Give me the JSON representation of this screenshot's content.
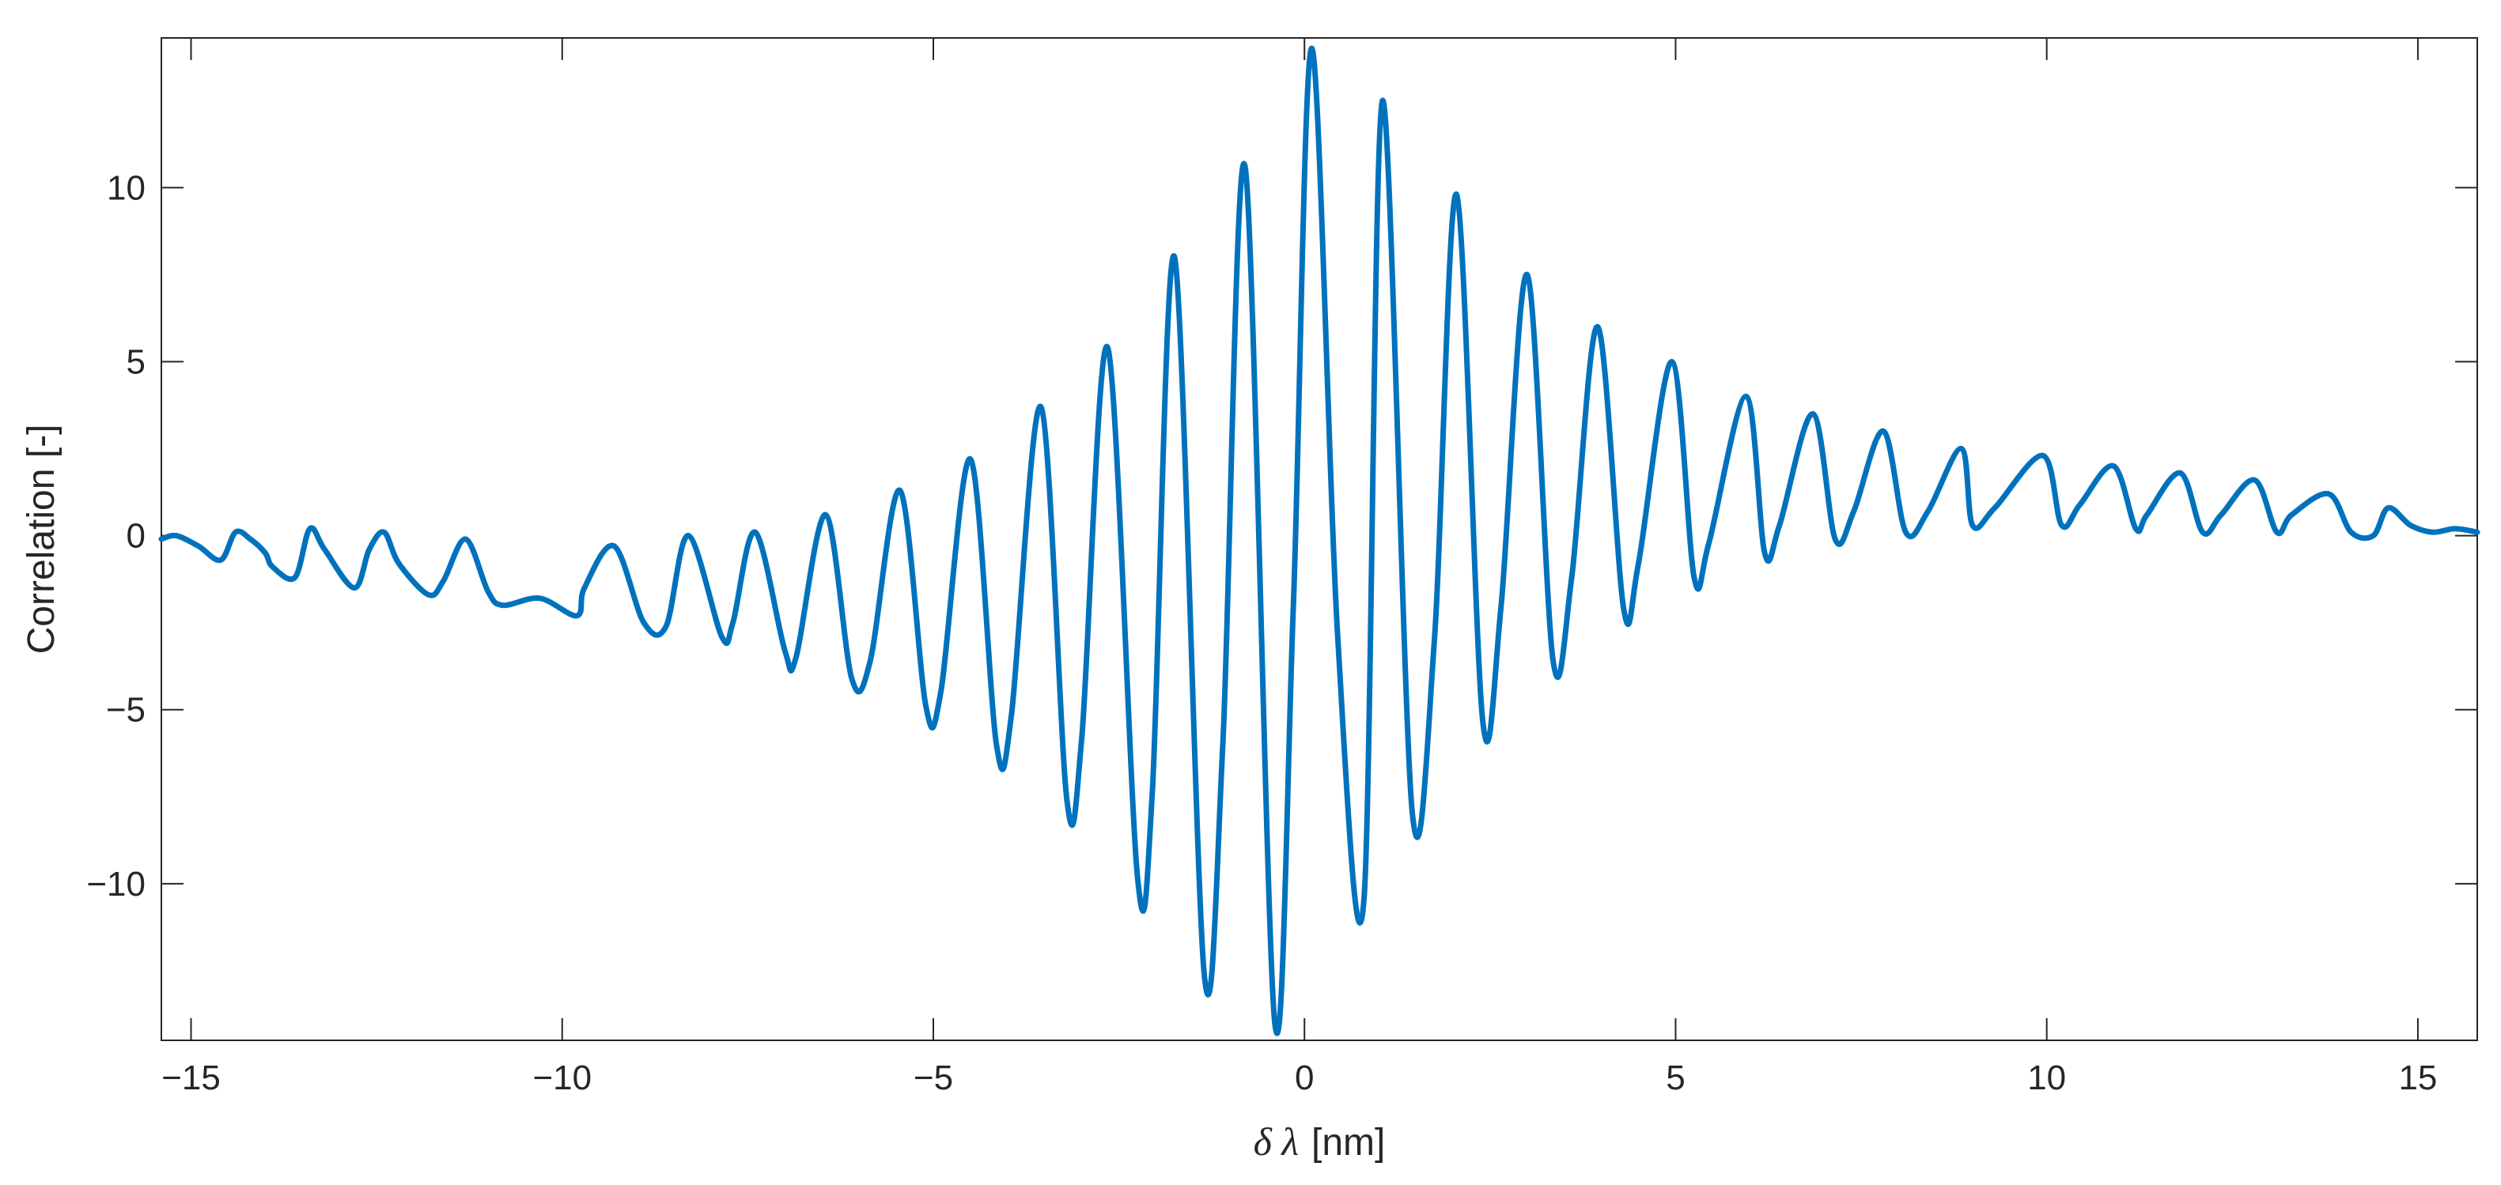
{
  "chart_data": {
    "type": "line",
    "title": "",
    "xlabel_symbol": "δ λ",
    "xlabel_unit": "[nm]",
    "ylabel": "Correlation [-]",
    "xlim": [
      -15.4,
      15.8
    ],
    "ylim": [
      -14.5,
      14.3
    ],
    "x_ticks": [
      -15,
      -10,
      -5,
      0,
      5,
      10,
      15
    ],
    "x_tick_labels": [
      "−15",
      "−10",
      "−5",
      "0",
      "5",
      "10",
      "15"
    ],
    "y_ticks": [
      -10,
      -5,
      0,
      5,
      10
    ],
    "y_tick_labels": [
      "−10",
      "−5",
      "0",
      "5",
      "10"
    ],
    "grid": false,
    "line_color": "#0072BD",
    "series": [
      {
        "x": [
          -15.4,
          -15.2,
          -14.9,
          -14.6,
          -14.4,
          -14.2,
          -14.0,
          -13.9,
          -13.6,
          -13.4,
          -13.2,
          -12.8,
          -12.6,
          -12.4,
          -12.2,
          -11.8,
          -11.6,
          -11.3,
          -11.0,
          -10.8,
          -10.3,
          -9.8,
          -9.7,
          -9.3,
          -8.9,
          -8.6,
          -8.3,
          -7.85,
          -7.7,
          -7.4,
          -7.0,
          -6.85,
          -6.45,
          -6.1,
          -5.85,
          -5.45,
          -5.1,
          -4.9,
          -4.5,
          -4.15,
          -3.95,
          -3.55,
          -3.2,
          -3.0,
          -2.65,
          -2.25,
          -2.05,
          -1.75,
          -1.35,
          -1.1,
          -0.8,
          -0.4,
          -0.15,
          0.1,
          0.45,
          0.8,
          1.05,
          1.45,
          1.75,
          2.05,
          2.4,
          2.65,
          3.0,
          3.35,
          3.6,
          3.95,
          4.3,
          4.5,
          4.95,
          5.25,
          5.45,
          5.95,
          6.2,
          6.4,
          6.85,
          7.15,
          7.4,
          7.8,
          8.1,
          8.4,
          8.85,
          9.0,
          9.3,
          9.95,
          10.2,
          10.45,
          10.9,
          11.2,
          11.35,
          11.8,
          12.1,
          12.35,
          12.8,
          13.1,
          13.3,
          13.8,
          14.1,
          14.4,
          14.6,
          14.9,
          15.2,
          15.5,
          15.8
        ],
        "y": [
          -0.1,
          0.0,
          -0.3,
          -0.7,
          0.1,
          -0.1,
          -0.5,
          -0.9,
          -1.2,
          0.2,
          -0.4,
          -1.5,
          -0.4,
          0.1,
          -0.8,
          -1.7,
          -1.3,
          -0.1,
          -1.6,
          -2.0,
          -1.8,
          -2.3,
          -1.5,
          -0.3,
          -2.5,
          -2.6,
          0.0,
          -2.9,
          -2.5,
          0.1,
          -3.3,
          -3.5,
          0.6,
          -4.1,
          -3.6,
          1.3,
          -4.9,
          -4.5,
          2.2,
          -6.0,
          -5.2,
          3.7,
          -7.6,
          -5.8,
          5.4,
          -9.8,
          -7.4,
          8.0,
          -12.6,
          -6.0,
          10.6,
          -14.0,
          -2.0,
          14.0,
          -3.0,
          -10.5,
          12.5,
          -7.9,
          -3.0,
          9.8,
          -5.3,
          -2.0,
          7.5,
          -3.6,
          -1.2,
          6.0,
          -2.1,
          -0.8,
          5.0,
          -1.2,
          -0.2,
          4.0,
          -0.5,
          0.3,
          3.5,
          -0.1,
          0.7,
          3.0,
          0.1,
          0.7,
          2.5,
          0.3,
          0.8,
          2.3,
          0.3,
          0.9,
          2.0,
          0.2,
          0.6,
          1.8,
          0.1,
          0.6,
          1.6,
          0.1,
          0.6,
          1.2,
          0.1,
          0.0,
          0.8,
          0.3,
          0.1,
          0.2,
          0.1
        ]
      }
    ]
  }
}
